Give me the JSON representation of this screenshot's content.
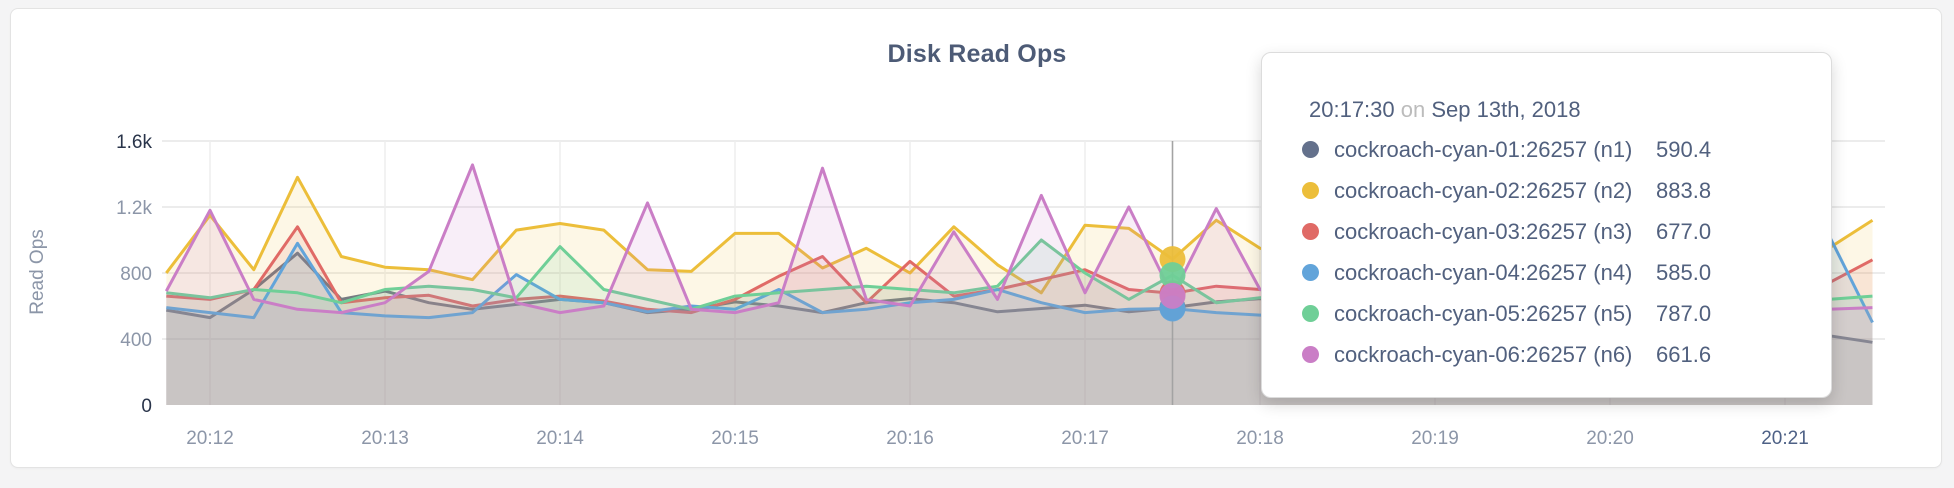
{
  "panel": {
    "name": "disk-read-ops-card"
  },
  "tooltip": {
    "time": "20:17:30",
    "on_word": "on",
    "date": "Sep 13th, 2018",
    "rows": [
      {
        "name": "cockroach-cyan-01:26257 (n1)",
        "value": "590.4"
      },
      {
        "name": "cockroach-cyan-02:26257 (n2)",
        "value": "883.8"
      },
      {
        "name": "cockroach-cyan-03:26257 (n3)",
        "value": "677.0"
      },
      {
        "name": "cockroach-cyan-04:26257 (n4)",
        "value": "585.0"
      },
      {
        "name": "cockroach-cyan-05:26257 (n5)",
        "value": "787.0"
      },
      {
        "name": "cockroach-cyan-06:26257 (n6)",
        "value": "661.6"
      }
    ]
  },
  "chart_data": {
    "type": "line",
    "title": "Disk Read Ops",
    "xlabel": "",
    "ylabel": "Read Ops",
    "ylim": [
      0,
      1600
    ],
    "grid": true,
    "legend_position": "tooltip-only",
    "x_start_time": "20:11:45",
    "x_interval_seconds": 15,
    "x_tick_labels": [
      "20:12",
      "20:13",
      "20:14",
      "20:15",
      "20:16",
      "20:17",
      "20:18",
      "20:19",
      "20:20",
      "20:21"
    ],
    "y_ticks": [
      {
        "label": "0",
        "value": 0,
        "emphasis": true
      },
      {
        "label": "400",
        "value": 400,
        "emphasis": false
      },
      {
        "label": "800",
        "value": 800,
        "emphasis": false
      },
      {
        "label": "1.2k",
        "value": 1200,
        "emphasis": false
      },
      {
        "label": "1.6k",
        "value": 1600,
        "emphasis": true
      }
    ],
    "hover": {
      "index": 23,
      "time": "20:17:30",
      "date": "Sep 13th, 2018",
      "values": [
        590.4,
        883.8,
        677.0,
        585.0,
        787.0,
        661.6
      ]
    },
    "series": [
      {
        "name": "cockroach-cyan-01:26257 (n1)",
        "color": "#64718c",
        "values": [
          575,
          530,
          700,
          920,
          640,
          690,
          620,
          580,
          610,
          640,
          620,
          560,
          580,
          625,
          600,
          560,
          620,
          645,
          620,
          565,
          585,
          605,
          565,
          590.4,
          625,
          645,
          600,
          580,
          560,
          545,
          565,
          580,
          560,
          540,
          525,
          560,
          545,
          480,
          420,
          380
        ]
      },
      {
        "name": "cockroach-cyan-02:26257 (n2)",
        "color": "#ecbe3a",
        "values": [
          800,
          1150,
          820,
          1380,
          900,
          835,
          820,
          760,
          1060,
          1100,
          1060,
          820,
          810,
          1040,
          1040,
          830,
          950,
          800,
          1080,
          850,
          680,
          1090,
          1070,
          883.8,
          1120,
          950,
          900,
          855,
          820,
          880,
          850,
          805,
          880,
          840,
          750,
          700,
          680,
          800,
          950,
          1120
        ]
      },
      {
        "name": "cockroach-cyan-03:26257 (n3)",
        "color": "#e06a66",
        "values": [
          660,
          640,
          700,
          1080,
          620,
          650,
          665,
          600,
          640,
          660,
          630,
          580,
          560,
          640,
          780,
          900,
          620,
          870,
          660,
          700,
          760,
          820,
          700,
          677.0,
          720,
          700,
          680,
          660,
          645,
          660,
          680,
          660,
          640,
          620,
          600,
          620,
          640,
          700,
          740,
          880
        ]
      },
      {
        "name": "cockroach-cyan-04:26257 (n4)",
        "color": "#62a4da",
        "values": [
          590,
          560,
          530,
          980,
          560,
          540,
          530,
          560,
          790,
          640,
          620,
          565,
          600,
          580,
          700,
          560,
          580,
          620,
          640,
          700,
          620,
          560,
          580,
          585.0,
          560,
          545,
          560,
          580,
          560,
          540,
          560,
          580,
          560,
          540,
          560,
          580,
          600,
          800,
          1030,
          500
        ]
      },
      {
        "name": "cockroach-cyan-05:26257 (n5)",
        "color": "#6fcf97",
        "values": [
          680,
          650,
          700,
          680,
          620,
          700,
          720,
          700,
          650,
          960,
          700,
          640,
          580,
          660,
          680,
          700,
          720,
          700,
          680,
          720,
          1000,
          800,
          640,
          787.0,
          620,
          650,
          670,
          690,
          660,
          640,
          660,
          680,
          660,
          640,
          620,
          640,
          660,
          620,
          640,
          660
        ]
      },
      {
        "name": "cockroach-cyan-06:26257 (n6)",
        "color": "#ca7ec6",
        "values": [
          690,
          1180,
          640,
          580,
          560,
          620,
          810,
          1455,
          620,
          560,
          600,
          1225,
          580,
          560,
          620,
          1435,
          640,
          600,
          1050,
          640,
          1270,
          680,
          1200,
          661.6,
          1190,
          700,
          620,
          600,
          580,
          620,
          640,
          600,
          580,
          560,
          580,
          600,
          590,
          600,
          580,
          590
        ]
      }
    ]
  }
}
